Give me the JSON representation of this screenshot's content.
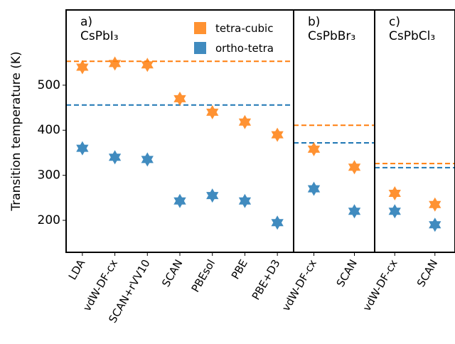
{
  "chart_data": [
    {
      "type": "scatter",
      "panel_label": "a)",
      "title": "CsPbI₃",
      "ylabel": "Transition temperature (K)",
      "categories": [
        "LDA",
        "vdW-DF-cx",
        "SCAN+rVV10",
        "SCAN",
        "PBEsol",
        "PBE",
        "PBE+D3"
      ],
      "ylim": [
        129,
        667
      ],
      "yticks": [
        200,
        300,
        400,
        500
      ],
      "legend": "upper right",
      "series": [
        {
          "name": "tetra-cubic",
          "color": "#ff7f0e",
          "values": [
            540,
            548,
            545,
            470,
            440,
            418,
            390
          ],
          "reference": 553
        },
        {
          "name": "ortho-tetra",
          "color": "#1f77b4",
          "values": [
            360,
            340,
            335,
            243,
            255,
            243,
            195
          ],
          "reference": 456
        }
      ]
    },
    {
      "type": "scatter",
      "panel_label": "b)",
      "title": "CsPbBr₃",
      "categories": [
        "vdW-DF-cx",
        "SCAN"
      ],
      "ylim": [
        129,
        667
      ],
      "series": [
        {
          "color": "#ff7f0e",
          "values": [
            358,
            318
          ],
          "reference": 411
        },
        {
          "color": "#1f77b4",
          "values": [
            270,
            220
          ],
          "reference": 372
        }
      ]
    },
    {
      "type": "scatter",
      "panel_label": "c)",
      "title": "CsPbCl₃",
      "categories": [
        "vdW-DF-cx",
        "SCAN"
      ],
      "ylim": [
        129,
        667
      ],
      "series": [
        {
          "color": "#ff7f0e",
          "values": [
            260,
            235
          ],
          "reference": 326
        },
        {
          "color": "#1f77b4",
          "values": [
            220,
            190
          ],
          "reference": 317
        }
      ]
    }
  ]
}
